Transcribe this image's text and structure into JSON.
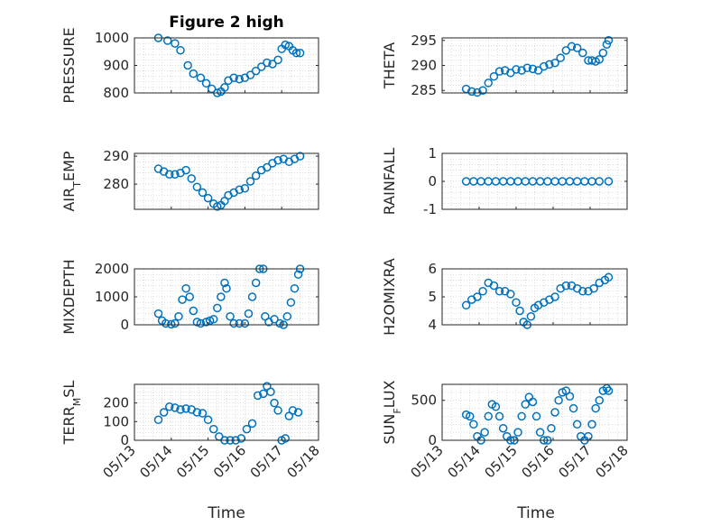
{
  "figure": {
    "title": "Figure 2 high",
    "xlabel": "Time"
  },
  "style": {
    "marker_color": "#0072bd",
    "axis_color": "#262626",
    "grid_color": "#c8c8c8"
  },
  "chart_data": [
    {
      "type": "scatter",
      "ylabel": "PRESSURE",
      "ylim": [
        800,
        1000
      ],
      "yticks": [
        "800",
        "900",
        "1000"
      ],
      "xlim": [
        13,
        18
      ],
      "series": [
        {
          "x": [
            13.65,
            13.9,
            14.1,
            14.25,
            14.45,
            14.6,
            14.8,
            14.95,
            15.1,
            15.25,
            15.35,
            15.45,
            15.55,
            15.7,
            15.85,
            16.0,
            16.15,
            16.3,
            16.45,
            16.6,
            16.75,
            16.9,
            17.0,
            17.1,
            17.2,
            17.3,
            17.4,
            17.5
          ],
          "y": [
            1000,
            990,
            980,
            955,
            900,
            870,
            855,
            835,
            815,
            800,
            805,
            820,
            845,
            855,
            850,
            855,
            865,
            880,
            895,
            910,
            905,
            920,
            960,
            975,
            970,
            955,
            945,
            945
          ]
        }
      ]
    },
    {
      "type": "scatter",
      "ylabel": "THETA",
      "ylim": [
        284.5,
        295.5
      ],
      "yticks": [
        "285",
        "290",
        "295"
      ],
      "xlim": [
        13,
        18
      ],
      "series": [
        {
          "x": [
            13.65,
            13.8,
            13.95,
            14.1,
            14.25,
            14.4,
            14.55,
            14.7,
            14.85,
            15.0,
            15.15,
            15.3,
            15.45,
            15.6,
            15.75,
            15.9,
            16.05,
            16.2,
            16.35,
            16.5,
            16.65,
            16.8,
            16.95,
            17.05,
            17.15,
            17.25,
            17.35,
            17.45,
            17.5
          ],
          "y": [
            285.3,
            284.8,
            284.6,
            285.0,
            286.5,
            287.8,
            288.8,
            289.0,
            288.5,
            289.2,
            289.0,
            289.5,
            289.3,
            289.0,
            289.8,
            290.2,
            290.5,
            291.5,
            293.0,
            293.8,
            293.5,
            292.5,
            291.0,
            291.0,
            290.8,
            291.2,
            292.5,
            294.2,
            295.0
          ]
        }
      ]
    },
    {
      "type": "scatter",
      "ylabel": "AIR_TEMP",
      "ylim": [
        271,
        291
      ],
      "yticks": [
        "280",
        "290"
      ],
      "xlim": [
        13,
        18
      ],
      "series": [
        {
          "x": [
            13.65,
            13.8,
            13.95,
            14.1,
            14.25,
            14.4,
            14.55,
            14.7,
            14.85,
            15.0,
            15.15,
            15.25,
            15.35,
            15.45,
            15.55,
            15.7,
            15.85,
            16.0,
            16.15,
            16.3,
            16.45,
            16.6,
            16.75,
            16.9,
            17.05,
            17.2,
            17.35,
            17.5
          ],
          "y": [
            285.5,
            284.5,
            283.5,
            283.5,
            284.0,
            285.0,
            282.0,
            279.0,
            277.0,
            275.0,
            273.0,
            272.0,
            272.5,
            274.0,
            276.0,
            277.0,
            278.0,
            278.5,
            281.0,
            283.0,
            285.0,
            286.0,
            287.5,
            288.5,
            289.0,
            288.0,
            289.0,
            290.0
          ]
        }
      ]
    },
    {
      "type": "scatter",
      "ylabel": "RAINFALL",
      "ylim": [
        -1,
        1
      ],
      "yticks": [
        "-1",
        "0",
        "1"
      ],
      "xlim": [
        13,
        18
      ],
      "series": [
        {
          "x": [
            13.65,
            13.85,
            14.05,
            14.25,
            14.45,
            14.65,
            14.85,
            15.05,
            15.25,
            15.45,
            15.65,
            15.85,
            16.05,
            16.25,
            16.45,
            16.65,
            16.85,
            17.05,
            17.25,
            17.5
          ],
          "y": [
            0,
            0,
            0,
            0,
            0,
            0,
            0,
            0,
            0,
            0,
            0,
            0,
            0,
            0,
            0,
            0,
            0,
            0,
            0,
            0
          ]
        }
      ]
    },
    {
      "type": "scatter",
      "ylabel": "MIXDEPTH",
      "ylim": [
        0,
        2000
      ],
      "yticks": [
        "0",
        "1000",
        "2000"
      ],
      "xlim": [
        13,
        18
      ],
      "series": [
        {
          "x": [
            13.65,
            13.75,
            13.85,
            14.0,
            14.1,
            14.2,
            14.3,
            14.4,
            14.5,
            14.6,
            14.7,
            14.8,
            14.95,
            15.05,
            15.15,
            15.25,
            15.35,
            15.45,
            15.5,
            15.6,
            15.7,
            15.85,
            16.0,
            16.1,
            16.2,
            16.3,
            16.4,
            16.5,
            16.55,
            16.65,
            16.8,
            16.95,
            17.05,
            17.15,
            17.25,
            17.35,
            17.45,
            17.5
          ],
          "y": [
            400,
            150,
            50,
            20,
            50,
            300,
            900,
            1300,
            1000,
            500,
            100,
            50,
            100,
            150,
            200,
            600,
            1000,
            1500,
            1300,
            300,
            50,
            50,
            50,
            400,
            1000,
            1500,
            2000,
            2000,
            300,
            100,
            200,
            50,
            0,
            300,
            800,
            1300,
            1800,
            2000
          ]
        }
      ]
    },
    {
      "type": "scatter",
      "ylabel": "H2OMIXRA",
      "ylim": [
        4,
        6
      ],
      "yticks": [
        "4",
        "5",
        "6"
      ],
      "xlim": [
        13,
        18
      ],
      "series": [
        {
          "x": [
            13.65,
            13.8,
            13.95,
            14.1,
            14.25,
            14.4,
            14.55,
            14.7,
            14.85,
            15.0,
            15.1,
            15.2,
            15.3,
            15.4,
            15.5,
            15.6,
            15.75,
            15.9,
            16.05,
            16.2,
            16.35,
            16.5,
            16.65,
            16.8,
            16.95,
            17.1,
            17.25,
            17.4,
            17.5
          ],
          "y": [
            4.7,
            4.9,
            5.0,
            5.2,
            5.5,
            5.4,
            5.2,
            5.2,
            5.1,
            4.8,
            4.5,
            4.1,
            4.0,
            4.3,
            4.6,
            4.7,
            4.8,
            4.9,
            5.0,
            5.3,
            5.4,
            5.4,
            5.3,
            5.2,
            5.2,
            5.3,
            5.5,
            5.6,
            5.7
          ]
        }
      ]
    },
    {
      "type": "scatter",
      "ylabel": "TERR_MSL",
      "ylim": [
        0,
        300
      ],
      "yticks": [
        "0",
        "100",
        "200"
      ],
      "xlim": [
        13,
        18
      ],
      "series": [
        {
          "x": [
            13.65,
            13.8,
            13.95,
            14.1,
            14.25,
            14.4,
            14.55,
            14.7,
            14.85,
            15.0,
            15.15,
            15.3,
            15.45,
            15.6,
            15.75,
            15.9,
            16.05,
            16.2,
            16.35,
            16.5,
            16.6,
            16.7,
            16.8,
            16.9,
            17.0,
            17.1,
            17.2,
            17.3,
            17.45
          ],
          "y": [
            110,
            150,
            180,
            175,
            165,
            170,
            165,
            150,
            145,
            110,
            60,
            20,
            0,
            0,
            0,
            10,
            60,
            90,
            240,
            250,
            290,
            260,
            200,
            160,
            0,
            10,
            130,
            160,
            150
          ]
        }
      ]
    },
    {
      "type": "scatter",
      "ylabel": "SUN_FLUX",
      "ylim": [
        0,
        700
      ],
      "yticks": [
        "0",
        "500"
      ],
      "xlim": [
        13,
        18
      ],
      "series": [
        {
          "x": [
            13.65,
            13.75,
            13.85,
            13.95,
            14.05,
            14.15,
            14.25,
            14.35,
            14.45,
            14.55,
            14.65,
            14.75,
            14.85,
            14.95,
            15.05,
            15.15,
            15.25,
            15.35,
            15.45,
            15.55,
            15.65,
            15.75,
            15.85,
            15.95,
            16.05,
            16.15,
            16.25,
            16.35,
            16.45,
            16.55,
            16.65,
            16.75,
            16.85,
            16.95,
            17.05,
            17.15,
            17.25,
            17.35,
            17.45,
            17.5
          ],
          "y": [
            320,
            300,
            200,
            50,
            0,
            100,
            300,
            450,
            420,
            300,
            150,
            50,
            0,
            0,
            100,
            300,
            450,
            540,
            480,
            300,
            100,
            0,
            0,
            150,
            350,
            500,
            600,
            620,
            550,
            400,
            200,
            50,
            0,
            50,
            200,
            400,
            500,
            620,
            650,
            620
          ]
        }
      ]
    }
  ],
  "xaxis": {
    "ticks": [
      "05/13",
      "05/14",
      "05/15",
      "05/16",
      "05/17",
      "05/18"
    ]
  }
}
